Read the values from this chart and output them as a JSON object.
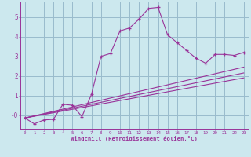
{
  "xlabel": "Windchill (Refroidissement éolien,°C)",
  "background_color": "#cce8ee",
  "line_color": "#993399",
  "grid_color": "#99bbcc",
  "series1_x": [
    0,
    1,
    2,
    3,
    4,
    5,
    6,
    7,
    8,
    9,
    10,
    11,
    12,
    13,
    14,
    15,
    16,
    17,
    18,
    19,
    20,
    21,
    22,
    23
  ],
  "series1_y": [
    -0.15,
    -0.45,
    -0.25,
    -0.22,
    0.55,
    0.5,
    -0.08,
    1.05,
    3.0,
    3.15,
    4.3,
    4.45,
    4.9,
    5.45,
    5.5,
    4.1,
    3.7,
    3.3,
    2.9,
    2.65,
    3.1,
    3.1,
    3.05,
    3.2
  ],
  "series2_x": [
    0,
    23
  ],
  "series2_y": [
    -0.15,
    2.45
  ],
  "series3_x": [
    0,
    23
  ],
  "series3_y": [
    -0.15,
    2.15
  ],
  "series4_x": [
    0,
    23
  ],
  "series4_y": [
    -0.15,
    1.9
  ],
  "ylim": [
    -0.7,
    5.8
  ],
  "xlim": [
    -0.5,
    23.5
  ],
  "yticks": [
    0,
    1,
    2,
    3,
    4,
    5
  ],
  "ytick_labels": [
    "-0",
    "1",
    "2",
    "3",
    "4",
    "5"
  ],
  "xticks": [
    0,
    1,
    2,
    3,
    4,
    5,
    6,
    7,
    8,
    9,
    10,
    11,
    12,
    13,
    14,
    15,
    16,
    17,
    18,
    19,
    20,
    21,
    22,
    23
  ]
}
